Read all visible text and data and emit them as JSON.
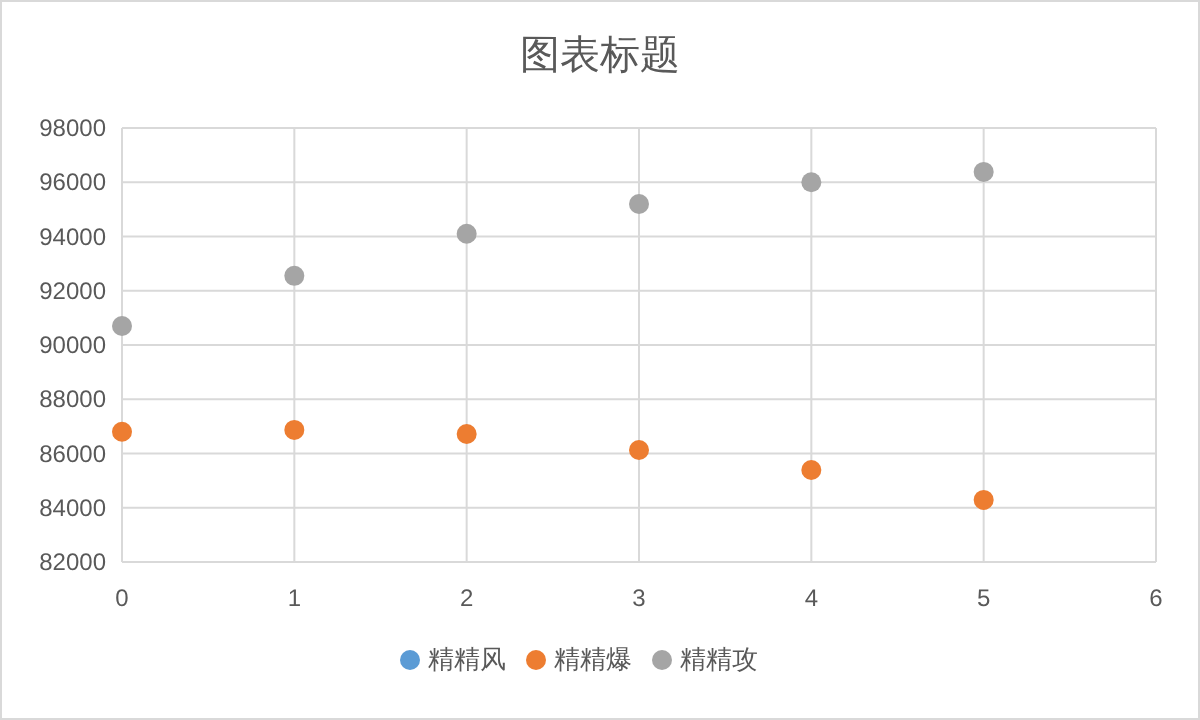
{
  "chart_data": {
    "type": "scatter",
    "title": "图表标题",
    "x": [
      0,
      1,
      2,
      3,
      4,
      5
    ],
    "series": [
      {
        "name": "精精风",
        "color": "#5b9bd5",
        "values": [
          null,
          null,
          null,
          null,
          null,
          null
        ]
      },
      {
        "name": "精精爆",
        "color": "#ed7d31",
        "values": [
          86800,
          86870,
          86720,
          86130,
          85390,
          84290
        ]
      },
      {
        "name": "精精攻",
        "color": "#a5a5a5",
        "values": [
          90700,
          92550,
          94100,
          95200,
          96000,
          96380
        ]
      }
    ],
    "xlim": [
      0,
      6
    ],
    "xticks": [
      0,
      1,
      2,
      3,
      4,
      5,
      6
    ],
    "ylim": [
      82000,
      98000
    ],
    "yticks": [
      82000,
      84000,
      86000,
      88000,
      90000,
      92000,
      94000,
      96000,
      98000
    ],
    "grid": true,
    "legend": "bottom",
    "marker": "circle"
  }
}
